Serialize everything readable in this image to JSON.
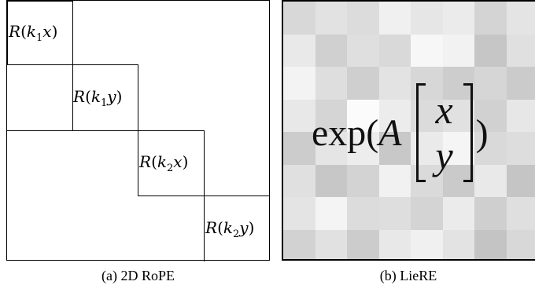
{
  "panel_a": {
    "blocks": [
      {
        "k_sub": "1",
        "coord": "x"
      },
      {
        "k_sub": "1",
        "coord": "y"
      },
      {
        "k_sub": "2",
        "coord": "x"
      },
      {
        "k_sub": "2",
        "coord": "y"
      }
    ],
    "label_fn": "R",
    "label_k": "k",
    "caption": "(a) 2D RoPE"
  },
  "panel_b": {
    "fn": "exp(",
    "matrix_symbol": "A",
    "vector": [
      "x",
      "y"
    ],
    "close": ")",
    "caption": "(b) LieRE",
    "cell_shades": [
      "#d8d8d8",
      "#e2e2e2",
      "#dcdcdc",
      "#f0f0f0",
      "#e6e6e6",
      "#ebebeb",
      "#d4d4d4",
      "#e4e4e4",
      "#d2d2d2",
      "#e9e9e9",
      "#d0d0d0",
      "#dfdfdf",
      "#d9d9d9",
      "#f7f7f7",
      "#f2f2f2",
      "#c6c6c6",
      "#e0e0e0",
      "#dadada",
      "#f3f3f3",
      "#dedede",
      "#cfcfcf",
      "#e3e3e3",
      "#d7d7d7",
      "#cdcdcd",
      "#d6d6d6",
      "#cbcbcb",
      "#eeeeee",
      "#e8e8e8",
      "#d5d5d5",
      "#fbfbfb",
      "#ececec",
      "#dbdbdb",
      "#e1e1e1",
      "#d1d1d1",
      "#e7e7e7",
      "#c9c9c9",
      "#cccccc",
      "#e5e5e5",
      "#ededed",
      "#c8c8c8",
      "#eaeaea",
      "#f5f5f5",
      "#d9d9d9",
      "#dddddd",
      "#cecece",
      "#e0e0e0",
      "#c7c7c7",
      "#d3d3d3",
      "#f1f1f1",
      "#dadada",
      "#cacaca",
      "#e9e9e9",
      "#c5c5c5",
      "#e4e4e4",
      "#e4e4e4",
      "#f4f4f4",
      "#dcdcdc",
      "#dedede",
      "#d4d4d4",
      "#ebebeb",
      "#cfcfcf",
      "#dfdfdf",
      "#f6f6f6",
      "#d2d2d2",
      "#e1e1e1",
      "#cccccc",
      "#e8e8e8",
      "#f0f0f0",
      "#e3e3e3",
      "#c4c4c4",
      "#d8d8d8",
      "#e6e6e6"
    ]
  }
}
